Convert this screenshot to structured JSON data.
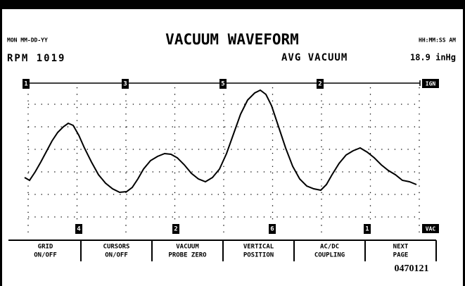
{
  "header": {
    "date": "MON MM-DD-YY",
    "title": "VACUUM WAVEFORM",
    "time": "HH:MM:SS AM",
    "rpm": "RPM 1019",
    "avg_label": "AVG VACUUM",
    "avg_value": "18.9 inHg"
  },
  "top_markers": [
    "1",
    "3",
    "5",
    "2"
  ],
  "bottom_markers": [
    "4",
    "2",
    "6",
    "1"
  ],
  "channel_labels": {
    "top": "IGN",
    "bottom": "VAC"
  },
  "buttons": [
    {
      "line1": "GRID",
      "line2": "ON/OFF"
    },
    {
      "line1": "CURSORS",
      "line2": "ON/OFF"
    },
    {
      "line1": "VACUUM",
      "line2": "PROBE ZERO"
    },
    {
      "line1": "VERTICAL",
      "line2": "POSITION"
    },
    {
      "line1": "AC/DC",
      "line2": "COUPLING"
    },
    {
      "line1": "NEXT",
      "line2": "PAGE"
    }
  ],
  "figure_id": "0470121"
}
